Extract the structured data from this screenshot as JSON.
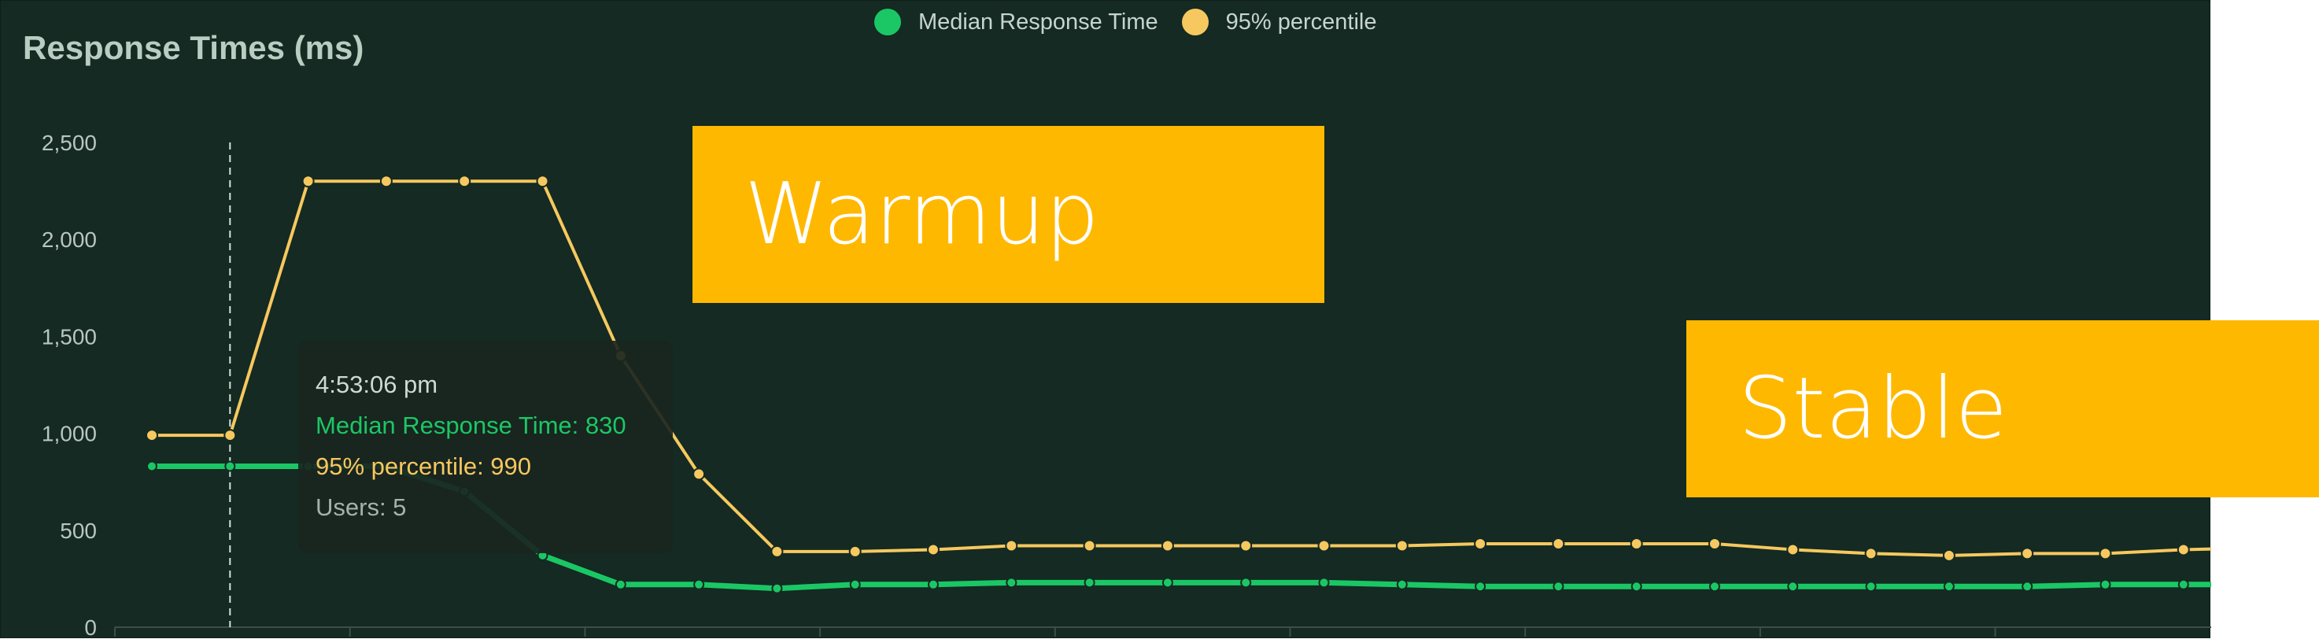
{
  "title": "Response Times (ms)",
  "legend": [
    {
      "label": "Median Response Time",
      "color": "#1bc765"
    },
    {
      "label": "95% percentile",
      "color": "#f6c85f"
    }
  ],
  "tooltip": {
    "time": "4:53:06 pm",
    "median": "Median Response Time: 830",
    "p95": "95% percentile: 990",
    "users": "Users: 5"
  },
  "annotations": {
    "warmup": "Warmup",
    "stable": "Stable"
  },
  "chart_data": {
    "type": "line",
    "title": "Response Times (ms)",
    "xlabel": "",
    "ylabel": "",
    "ylim": [
      0,
      2500
    ],
    "yticks": [
      0,
      500,
      1000,
      1500,
      2000,
      2500
    ],
    "ytick_labels": [
      "0",
      "500",
      "1,000",
      "1,500",
      "2,000",
      "2,500"
    ],
    "grid": false,
    "legend_position": "top-center",
    "hover_index": 1,
    "series": [
      {
        "name": "Median Response Time",
        "color": "#1bc765",
        "values": [
          830,
          830,
          830,
          830,
          700,
          370,
          220,
          220,
          200,
          220,
          220,
          230,
          230,
          230,
          230,
          230,
          220,
          210,
          210,
          210,
          210,
          210,
          210,
          210,
          210,
          220,
          220,
          220
        ]
      },
      {
        "name": "95% percentile",
        "color": "#f6c85f",
        "values": [
          990,
          990,
          2300,
          2300,
          2300,
          2300,
          1400,
          790,
          390,
          390,
          400,
          420,
          420,
          420,
          420,
          420,
          420,
          430,
          430,
          430,
          430,
          400,
          380,
          370,
          380,
          380,
          400,
          410
        ]
      }
    ]
  }
}
